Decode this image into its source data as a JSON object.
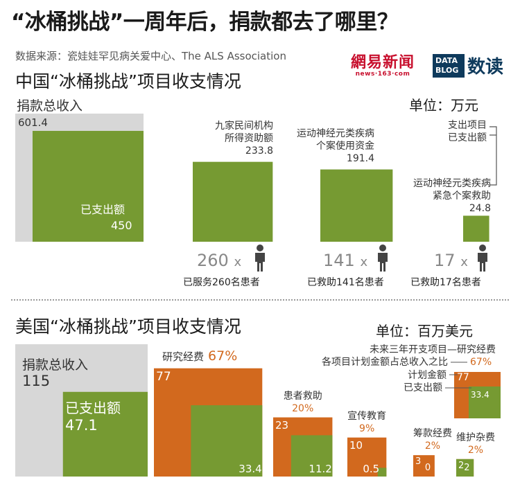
{
  "header": {
    "title": "“冰桶挑战”一周年后，捐款都去了哪里？",
    "source": "数据来源：瓷娃娃罕见病关爱中心、The ALS Association",
    "logo_netease": "網易新闻",
    "logo_netease_url": "news·163·com",
    "logo_datablog_line1": "DATA",
    "logo_datablog_line2": "BLOG",
    "logo_shudu": "数读"
  },
  "china": {
    "section_title": "中国“冰桶挑战”项目收支情况",
    "unit": "单位：万元",
    "total_label": "捐款总收入",
    "total_value": "601.4",
    "spent_label": "已支出额",
    "spent_value": "450",
    "item1_label_line1": "九家民间机构",
    "item1_label_line2": "所得资助额",
    "item1_value": "233.8",
    "item2_label_line1": "运动神经元类疾病",
    "item2_label_line2": "个案使用资金",
    "item2_value": "191.4",
    "legend_line1": "支出项目",
    "legend_line2": "已支出额",
    "item3_label_line1": "运动神经元类疾病",
    "item3_label_line2": "紧急个案救助",
    "item3_value": "24.8",
    "patients1_count": "260",
    "patients1_x": "x",
    "patients1_caption": "已服务260名患者",
    "patients2_count": "141",
    "patients2_x": "x",
    "patients2_caption": "已救助141名患者",
    "patients3_count": "17",
    "patients3_x": "x",
    "patients3_caption": "已救助17名患者"
  },
  "usa": {
    "section_title": "美国“冰桶挑战”项目收支情况",
    "unit": "单位：百万美元",
    "total_label": "捐款总收入",
    "total_value": "115",
    "spent_label": "已支出额",
    "spent_value": "47.1",
    "legend_line1": "未来三年开支项目—研究经费",
    "legend_line2": "各项目计划金额占总收入之比",
    "legend_pct": "67%",
    "legend_line3": "计划金额",
    "legend_line4": "已支出额",
    "legend_plan_value": "77",
    "legend_spent_value": "33.4",
    "items": [
      {
        "name": "研究经费",
        "pct": "67%",
        "plan": "77",
        "spent": "33.4"
      },
      {
        "name": "患者救助",
        "pct": "20%",
        "plan": "23",
        "spent": "11.2"
      },
      {
        "name": "宣传教育",
        "pct": "9%",
        "plan": "10",
        "spent": "0.5"
      },
      {
        "name": "筹款经费",
        "pct": "2%",
        "plan": "3",
        "spent": "0"
      },
      {
        "name": "维护杂费",
        "pct": "2%",
        "plan": "2",
        "spent": "2"
      }
    ]
  },
  "colors": {
    "green": "#769a32",
    "orange": "#d2691e",
    "grey": "#d7d7d7"
  },
  "chart_data": [
    {
      "type": "bar",
      "title": "中国“冰桶挑战”项目收支情况",
      "unit": "单位：万元",
      "categories": [
        "捐款总收入",
        "已支出额",
        "九家民间机构所得资助额",
        "运动神经元类疾病个案使用资金",
        "运动神经元类疾病紧急个案救助"
      ],
      "values": [
        601.4,
        450,
        233.8,
        191.4,
        24.8
      ],
      "patients": [
        260,
        141,
        17
      ]
    },
    {
      "type": "bar",
      "title": "美国“冰桶挑战”项目收支情况",
      "unit": "单位：百万美元",
      "total": 115,
      "spent_total": 47.1,
      "categories": [
        "研究经费",
        "患者救助",
        "宣传教育",
        "筹款经费",
        "维护杂费"
      ],
      "series": [
        {
          "name": "计划金额",
          "values": [
            77,
            23,
            10,
            3,
            2
          ]
        },
        {
          "name": "已支出额",
          "values": [
            33.4,
            11.2,
            0.5,
            0,
            2
          ]
        }
      ],
      "pct_of_total": [
        "67%",
        "20%",
        "9%",
        "2%",
        "2%"
      ]
    }
  ]
}
